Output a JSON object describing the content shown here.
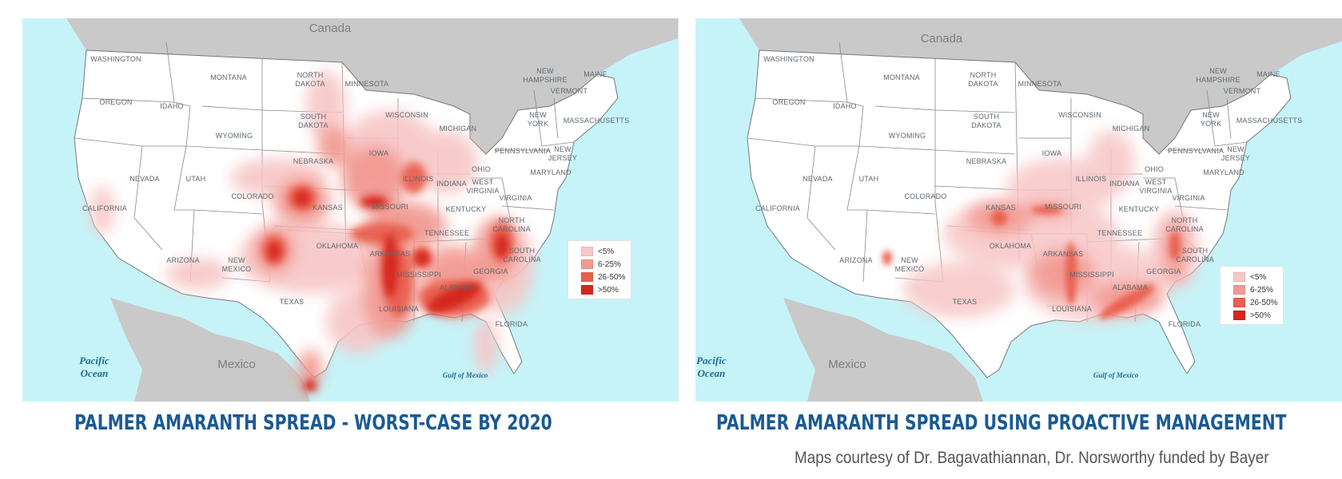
{
  "maps": [
    {
      "id": "worst-case",
      "title": "PALMER AMARANTH SPREAD - WORST-CASE BY 2020",
      "labels": {
        "canada": "Canada",
        "mexico": "Mexico",
        "pacific": "Pacific",
        "ocean": "Ocean",
        "gulf": "Gulf of Mexico"
      },
      "legend": [
        "<5%",
        "6-25%",
        "26-50%",
        ">50%"
      ]
    },
    {
      "id": "proactive",
      "title": "PALMER AMARANTH SPREAD USING PROACTIVE MANAGEMENT",
      "labels": {
        "canada": "Canada",
        "mexico": "Mexico",
        "pacific": "Pacific",
        "ocean": "Ocean",
        "gulf": "Gulf of Mexico"
      },
      "legend": [
        "<5%",
        "6-25%",
        "26-50%",
        ">50%"
      ]
    }
  ],
  "states": [
    "WASHINGTON",
    "OREGON",
    "CALIFORNIA",
    "NEVADA",
    "IDAHO",
    "MONTANA",
    "WYOMING",
    "UTAH",
    "ARIZONA",
    "COLORADO",
    "NEW",
    "MEXICO",
    "NORTH",
    "DAKOTA",
    "SOUTH",
    "DAKOTA",
    "NEBRASKA",
    "KANSAS",
    "OKLAHOMA",
    "TEXAS",
    "MINNESOTA",
    "IOWA",
    "MISSOURI",
    "ARKANSAS",
    "LOUISIANA",
    "WISCONSIN",
    "ILLINOIS",
    "MICHIGAN",
    "INDIANA",
    "OHIO",
    "KENTUCKY",
    "TENNESSEE",
    "MISSISSIPPI",
    "ALABAMA",
    "GEORGIA",
    "FLORIDA",
    "SOUTH",
    "CAROLINA",
    "NORTH",
    "CAROLINA",
    "VIRGINIA",
    "WEST",
    "VIRGINIA",
    "PENNSYLVANIA",
    "NEW",
    "YORK",
    "MARYLAND",
    "NEW",
    "JERSEY",
    "MASSACHUSETTS",
    "VERMONT",
    "NEW",
    "HAMPSHIRE",
    "MAINE"
  ],
  "legend_colors": [
    "#f7c6c6",
    "#f29a92",
    "#e9604f",
    "#d4261c"
  ],
  "credit": "Maps courtesy of Dr. Bagavathiannan, Dr. Norsworthy funded by Bayer"
}
